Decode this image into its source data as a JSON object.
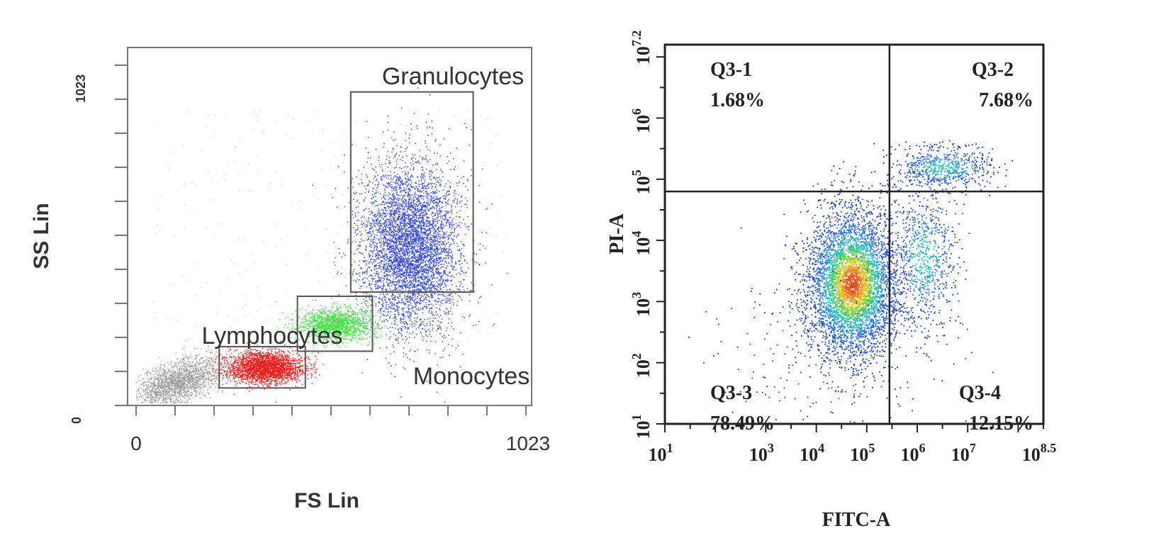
{
  "chart_data": [
    {
      "type": "scatter",
      "title": "",
      "xlabel": "FS Lin",
      "ylabel": "SS Lin",
      "xlim": [
        0,
        1023
      ],
      "ylim": [
        0,
        1023
      ],
      "x_tick_labels": [
        "0",
        "1023"
      ],
      "y_tick_labels": [
        "0",
        "1023"
      ],
      "grid": false,
      "gates": [
        {
          "name": "Granulocytes",
          "x": [
            565,
            875
          ],
          "y": [
            324,
            896
          ],
          "color": "#2b3fd6"
        },
        {
          "name": "Monocytes",
          "x": [
            430,
            620
          ],
          "y": [
            155,
            312
          ],
          "color": "#3ee03e"
        },
        {
          "name": "Lymphocytes",
          "x": [
            232,
            450
          ],
          "y": [
            50,
            168
          ],
          "color": "#e8201c"
        }
      ],
      "populations": [
        {
          "name": "Granulocytes",
          "center": [
            715,
            455
          ],
          "spread": [
            62,
            120
          ],
          "color": "#2b3fd6"
        },
        {
          "name": "Monocytes",
          "center": [
            521,
            232
          ],
          "spread": [
            48,
            24
          ],
          "color": "#3ee03e"
        },
        {
          "name": "Lymphocytes",
          "center": [
            345,
            110
          ],
          "spread": [
            48,
            22
          ],
          "color": "#e8201c"
        },
        {
          "name": "",
          "center": [
            125,
            68
          ],
          "spread": [
            55,
            30
          ],
          "color": "#999999"
        }
      ]
    },
    {
      "type": "scatter",
      "title": "",
      "xlabel": "FITC-A",
      "ylabel": "PI-A",
      "x_scale": "log",
      "y_scale": "log",
      "xlim_log10": [
        1,
        8.5
      ],
      "ylim_log10": [
        1,
        7.2
      ],
      "x_ticks": [
        {
          "log10": 1,
          "base": "10",
          "exp": "1"
        },
        {
          "log10": 3,
          "base": "10",
          "exp": "3"
        },
        {
          "log10": 4,
          "base": "10",
          "exp": "4"
        },
        {
          "log10": 5,
          "base": "10",
          "exp": "5"
        },
        {
          "log10": 6,
          "base": "10",
          "exp": "6"
        },
        {
          "log10": 7,
          "base": "10",
          "exp": "7"
        },
        {
          "log10": 8.5,
          "base": "10",
          "exp": "8.5"
        }
      ],
      "y_ticks": [
        {
          "log10": 1,
          "base": "10",
          "exp": "1"
        },
        {
          "log10": 2,
          "base": "10",
          "exp": "2"
        },
        {
          "log10": 3,
          "base": "10",
          "exp": "3"
        },
        {
          "log10": 4,
          "base": "10",
          "exp": "4"
        },
        {
          "log10": 5,
          "base": "10",
          "exp": "5"
        },
        {
          "log10": 6,
          "base": "10",
          "exp": "6"
        },
        {
          "log10": 7.2,
          "base": "10",
          "exp": "7.2"
        }
      ],
      "quadrant_lines_log10": {
        "x": 5.45,
        "y": 4.8
      },
      "quadrants": [
        {
          "id": "Q3-1",
          "percent": "1.68%",
          "position": "top-left"
        },
        {
          "id": "Q3-2",
          "percent": "7.68%",
          "position": "top-right"
        },
        {
          "id": "Q3-3",
          "percent": "78.49%",
          "position": "bottom-left"
        },
        {
          "id": "Q3-4",
          "percent": "12.15%",
          "position": "bottom-right"
        }
      ],
      "populations": [
        {
          "center_log10": [
            4.7,
            3.3
          ],
          "spread": [
            0.45,
            0.6
          ],
          "share": 0.74
        },
        {
          "center_log10": [
            6.1,
            3.7
          ],
          "spread": [
            0.35,
            0.6
          ],
          "share": 0.12
        },
        {
          "center_log10": [
            6.5,
            5.2
          ],
          "spread": [
            0.5,
            0.18
          ],
          "share": 0.1
        },
        {
          "center_log10": [
            4.2,
            2.2
          ],
          "spread": [
            1.2,
            0.9
          ],
          "share": 0.04
        }
      ]
    }
  ]
}
